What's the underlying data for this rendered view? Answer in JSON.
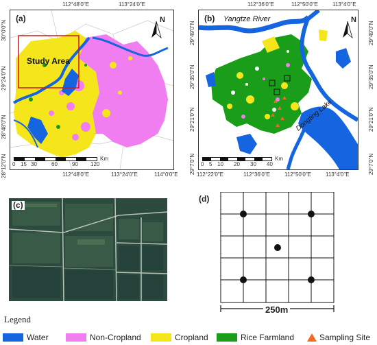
{
  "panel_a": {
    "label": "(a)",
    "top_ticks": [
      "112°48'0\"E",
      "113°24'0\"E"
    ],
    "bottom_ticks": [
      "112°48'0\"E",
      "113°24'0\"E",
      "114°0'0\"E"
    ],
    "left_ticks": [
      "30°0'0\"N",
      "29°24'0\"N",
      "28°48'0\"N",
      "28°12'0\"N"
    ],
    "study_area_label": "Study Area",
    "north": "N",
    "scale": {
      "ticks": [
        "0",
        "15",
        "30",
        "60",
        "90",
        "120"
      ],
      "unit": "Km"
    }
  },
  "panel_b": {
    "label": "(b)",
    "river_label": "Yangtze River",
    "lake_label": "Dongting Lake",
    "top_ticks": [
      "112°36'0\"E",
      "112°50'0\"E",
      "113°4'0\"E"
    ],
    "bottom_ticks": [
      "112°22'0\"E",
      "112°36'0\"E",
      "112°50'0\"E",
      "113°4'0\"E"
    ],
    "left_ticks": [
      "29°49'0\"N",
      "29°35'0\"N",
      "29°21'0\"N",
      "29°7'0\"N"
    ],
    "right_ticks": [
      "29°49'0\"N",
      "29°35'0\"N",
      "29°21'0\"N",
      "29°7'0\"N"
    ],
    "north": "N",
    "scale": {
      "ticks": [
        "0",
        "5",
        "10",
        "20",
        "30",
        "40"
      ],
      "unit": "Km"
    }
  },
  "panel_c": {
    "label": "(c)"
  },
  "panel_d": {
    "label": "(d)",
    "distance": "250m"
  },
  "legend": {
    "title": "Legend",
    "items": [
      {
        "label": "Water",
        "color": "#1565e0",
        "icon": "swatch"
      },
      {
        "label": "Non-Cropland",
        "color": "#f07ef0",
        "icon": "swatch"
      },
      {
        "label": "Cropland",
        "color": "#f5e61c",
        "icon": "swatch"
      },
      {
        "label": "Rice Farmland",
        "color": "#1a9e1a",
        "icon": "swatch"
      },
      {
        "label": "Sampling Site",
        "color": "#f26a21",
        "icon": "triangle"
      }
    ]
  }
}
